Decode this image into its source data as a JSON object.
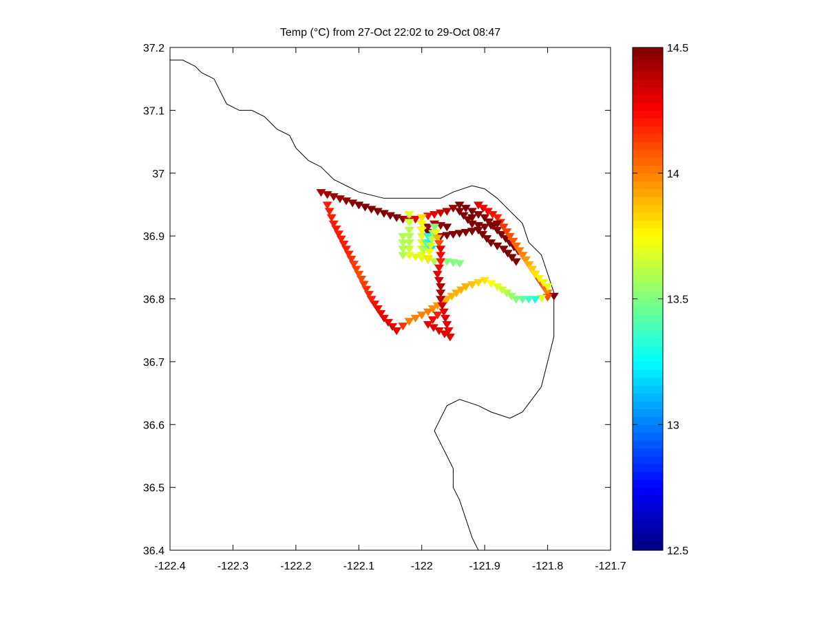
{
  "chart_data": {
    "type": "scatter",
    "title": "Temp (°C) from 27-Oct 22:02 to 29-Oct 08:47",
    "xlabel": "",
    "ylabel": "",
    "xlim": [
      -122.4,
      -121.7
    ],
    "ylim": [
      36.4,
      37.2
    ],
    "xticks": [
      "-122.4",
      "-122.3",
      "-122.2",
      "-122.1",
      "-122",
      "-121.9",
      "-121.8",
      "-121.7"
    ],
    "yticks": [
      "36.4",
      "36.5",
      "36.6",
      "36.7",
      "36.8",
      "36.9",
      "37",
      "37.1",
      "37.2"
    ],
    "grid": false,
    "marker": "triangle-down",
    "colorbar": {
      "label": "",
      "clim": [
        12.5,
        14.5
      ],
      "ticks": [
        "12.5",
        "13",
        "13.5",
        "14",
        "14.5"
      ],
      "colormap": "jet"
    },
    "coastline": [
      [
        -122.4,
        37.18
      ],
      [
        -122.38,
        37.18
      ],
      [
        -122.36,
        37.17
      ],
      [
        -122.35,
        37.16
      ],
      [
        -122.33,
        37.15
      ],
      [
        -122.32,
        37.13
      ],
      [
        -122.31,
        37.11
      ],
      [
        -122.29,
        37.1
      ],
      [
        -122.27,
        37.1
      ],
      [
        -122.25,
        37.09
      ],
      [
        -122.23,
        37.07
      ],
      [
        -122.21,
        37.06
      ],
      [
        -122.2,
        37.04
      ],
      [
        -122.18,
        37.02
      ],
      [
        -122.16,
        37.01
      ],
      [
        -122.14,
        36.99
      ],
      [
        -122.12,
        36.98
      ],
      [
        -122.1,
        36.97
      ],
      [
        -122.06,
        36.96
      ],
      [
        -122.03,
        36.96
      ],
      [
        -122.0,
        36.96
      ],
      [
        -121.97,
        36.96
      ],
      [
        -121.95,
        36.97
      ],
      [
        -121.92,
        36.98
      ],
      [
        -121.9,
        36.975
      ],
      [
        -121.88,
        36.96
      ],
      [
        -121.86,
        36.94
      ],
      [
        -121.84,
        36.92
      ],
      [
        -121.83,
        36.89
      ],
      [
        -121.81,
        36.87
      ],
      [
        -121.8,
        36.84
      ],
      [
        -121.79,
        36.81
      ],
      [
        -121.79,
        36.78
      ],
      [
        -121.79,
        36.74
      ],
      [
        -121.8,
        36.7
      ],
      [
        -121.81,
        36.66
      ],
      [
        -121.84,
        36.62
      ],
      [
        -121.86,
        36.61
      ],
      [
        -121.89,
        36.62
      ],
      [
        -121.91,
        36.63
      ],
      [
        -121.94,
        36.64
      ],
      [
        -121.96,
        36.63
      ],
      [
        -121.97,
        36.61
      ],
      [
        -121.98,
        36.59
      ],
      [
        -121.97,
        36.57
      ],
      [
        -121.96,
        36.55
      ],
      [
        -121.95,
        36.53
      ],
      [
        -121.95,
        36.5
      ],
      [
        -121.94,
        36.48
      ],
      [
        -121.93,
        36.45
      ],
      [
        -121.92,
        36.42
      ],
      [
        -121.91,
        36.4
      ]
    ],
    "track": [
      {
        "x": -122.16,
        "y": 36.97,
        "t": 14.4
      },
      {
        "x": -122.13,
        "y": 36.96,
        "t": 14.45
      },
      {
        "x": -122.1,
        "y": 36.95,
        "t": 14.5
      },
      {
        "x": -122.07,
        "y": 36.94,
        "t": 14.5
      },
      {
        "x": -122.04,
        "y": 36.93,
        "t": 14.5
      },
      {
        "x": -122.02,
        "y": 36.925,
        "t": 14.4
      },
      {
        "x": -122.0,
        "y": 36.93,
        "t": 14.2
      },
      {
        "x": -121.98,
        "y": 36.935,
        "t": 14.3
      },
      {
        "x": -121.96,
        "y": 36.94,
        "t": 14.4
      },
      {
        "x": -121.94,
        "y": 36.95,
        "t": 14.5
      },
      {
        "x": -121.92,
        "y": 36.94,
        "t": 14.5
      },
      {
        "x": -121.9,
        "y": 36.93,
        "t": 14.5
      },
      {
        "x": -121.88,
        "y": 36.91,
        "t": 14.5
      },
      {
        "x": -121.86,
        "y": 36.89,
        "t": 14.5
      },
      {
        "x": -121.84,
        "y": 36.87,
        "t": 14.5
      },
      {
        "x": -121.82,
        "y": 36.84,
        "t": 14.2
      },
      {
        "x": -121.8,
        "y": 36.81,
        "t": 14.0
      },
      {
        "x": -121.79,
        "y": 36.805,
        "t": 14.5
      },
      {
        "x": -121.82,
        "y": 36.8,
        "t": 13.3
      },
      {
        "x": -121.85,
        "y": 36.8,
        "t": 13.5
      },
      {
        "x": -121.88,
        "y": 36.82,
        "t": 13.7
      },
      {
        "x": -121.9,
        "y": 36.83,
        "t": 13.8
      },
      {
        "x": -121.93,
        "y": 36.82,
        "t": 13.9
      },
      {
        "x": -121.96,
        "y": 36.8,
        "t": 13.9
      },
      {
        "x": -121.99,
        "y": 36.78,
        "t": 14.0
      },
      {
        "x": -122.02,
        "y": 36.765,
        "t": 14.0
      },
      {
        "x": -122.04,
        "y": 36.75,
        "t": 14.3
      },
      {
        "x": -122.06,
        "y": 36.77,
        "t": 14.3
      },
      {
        "x": -122.08,
        "y": 36.8,
        "t": 14.2
      },
      {
        "x": -122.1,
        "y": 36.84,
        "t": 14.1
      },
      {
        "x": -122.12,
        "y": 36.88,
        "t": 14.2
      },
      {
        "x": -122.14,
        "y": 36.92,
        "t": 14.2
      },
      {
        "x": -122.15,
        "y": 36.95,
        "t": 14.2
      },
      {
        "x": -121.91,
        "y": 36.95,
        "t": 14.3
      },
      {
        "x": -121.88,
        "y": 36.93,
        "t": 14.2
      },
      {
        "x": -121.86,
        "y": 36.9,
        "t": 14.1
      },
      {
        "x": -121.84,
        "y": 36.87,
        "t": 14.0
      },
      {
        "x": -121.82,
        "y": 36.84,
        "t": 13.8
      },
      {
        "x": -121.8,
        "y": 36.82,
        "t": 13.7
      },
      {
        "x": -121.94,
        "y": 36.94,
        "t": 14.5
      },
      {
        "x": -121.92,
        "y": 36.92,
        "t": 14.5
      },
      {
        "x": -121.9,
        "y": 36.915,
        "t": 14.5
      },
      {
        "x": -121.88,
        "y": 36.92,
        "t": 14.5
      },
      {
        "x": -121.96,
        "y": 36.915,
        "t": 14.5
      },
      {
        "x": -121.98,
        "y": 36.92,
        "t": 14.4
      },
      {
        "x": -122.0,
        "y": 36.91,
        "t": 14.5
      },
      {
        "x": -121.97,
        "y": 36.9,
        "t": 14.5
      },
      {
        "x": -121.94,
        "y": 36.905,
        "t": 14.5
      },
      {
        "x": -121.91,
        "y": 36.91,
        "t": 14.5
      },
      {
        "x": -121.89,
        "y": 36.89,
        "t": 14.5
      },
      {
        "x": -121.87,
        "y": 36.88,
        "t": 14.5
      },
      {
        "x": -121.85,
        "y": 36.86,
        "t": 14.5
      },
      {
        "x": -121.92,
        "y": 36.93,
        "t": 14.5
      },
      {
        "x": -122.02,
        "y": 36.935,
        "t": 13.7
      },
      {
        "x": -122.02,
        "y": 36.91,
        "t": 13.6
      },
      {
        "x": -122.02,
        "y": 36.89,
        "t": 13.6
      },
      {
        "x": -122.02,
        "y": 36.87,
        "t": 13.7
      },
      {
        "x": -122.0,
        "y": 36.865,
        "t": 13.7
      },
      {
        "x": -121.98,
        "y": 36.86,
        "t": 13.6
      },
      {
        "x": -121.96,
        "y": 36.86,
        "t": 13.5
      },
      {
        "x": -121.94,
        "y": 36.857,
        "t": 13.5
      },
      {
        "x": -122.03,
        "y": 36.9,
        "t": 13.6
      },
      {
        "x": -122.03,
        "y": 36.87,
        "t": 13.6
      },
      {
        "x": -122.0,
        "y": 36.93,
        "t": 13.8
      },
      {
        "x": -122.0,
        "y": 36.9,
        "t": 13.7
      },
      {
        "x": -122.0,
        "y": 36.87,
        "t": 13.7
      },
      {
        "x": -121.99,
        "y": 36.9,
        "t": 13.3
      },
      {
        "x": -121.985,
        "y": 36.88,
        "t": 13.2
      },
      {
        "x": -121.99,
        "y": 36.865,
        "t": 13.8
      },
      {
        "x": -121.98,
        "y": 36.915,
        "t": 13.5
      },
      {
        "x": -121.97,
        "y": 36.88,
        "t": 14.3
      },
      {
        "x": -121.97,
        "y": 36.86,
        "t": 14.2
      },
      {
        "x": -121.975,
        "y": 36.84,
        "t": 14.3
      },
      {
        "x": -121.97,
        "y": 36.82,
        "t": 14.4
      },
      {
        "x": -121.97,
        "y": 36.8,
        "t": 14.4
      },
      {
        "x": -121.965,
        "y": 36.78,
        "t": 14.3
      },
      {
        "x": -121.96,
        "y": 36.76,
        "t": 14.3
      },
      {
        "x": -121.955,
        "y": 36.74,
        "t": 14.3
      },
      {
        "x": -121.99,
        "y": 36.76,
        "t": 14.3
      },
      {
        "x": -121.975,
        "y": 36.775,
        "t": 14.2
      }
    ]
  }
}
